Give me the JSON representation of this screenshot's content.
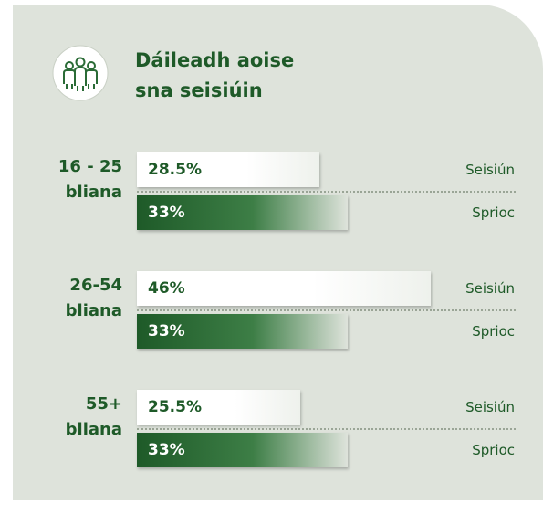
{
  "chart_data": {
    "type": "bar",
    "title": "Dáileadh aoise sna seisiúin",
    "categories": [
      "16 - 25 bliana",
      "26-54 bliana",
      "55+ bliana"
    ],
    "series": [
      {
        "name": "Seisiún",
        "color": "#ffffff",
        "values": [
          28.5,
          46,
          25.5
        ],
        "value_labels": [
          "28.5%",
          "46%",
          "25.5%"
        ]
      },
      {
        "name": "Sprioc",
        "color": "#2a6b36",
        "values": [
          33,
          33,
          33
        ],
        "value_labels": [
          "33%",
          "33%",
          "33%"
        ]
      }
    ]
  }
}
